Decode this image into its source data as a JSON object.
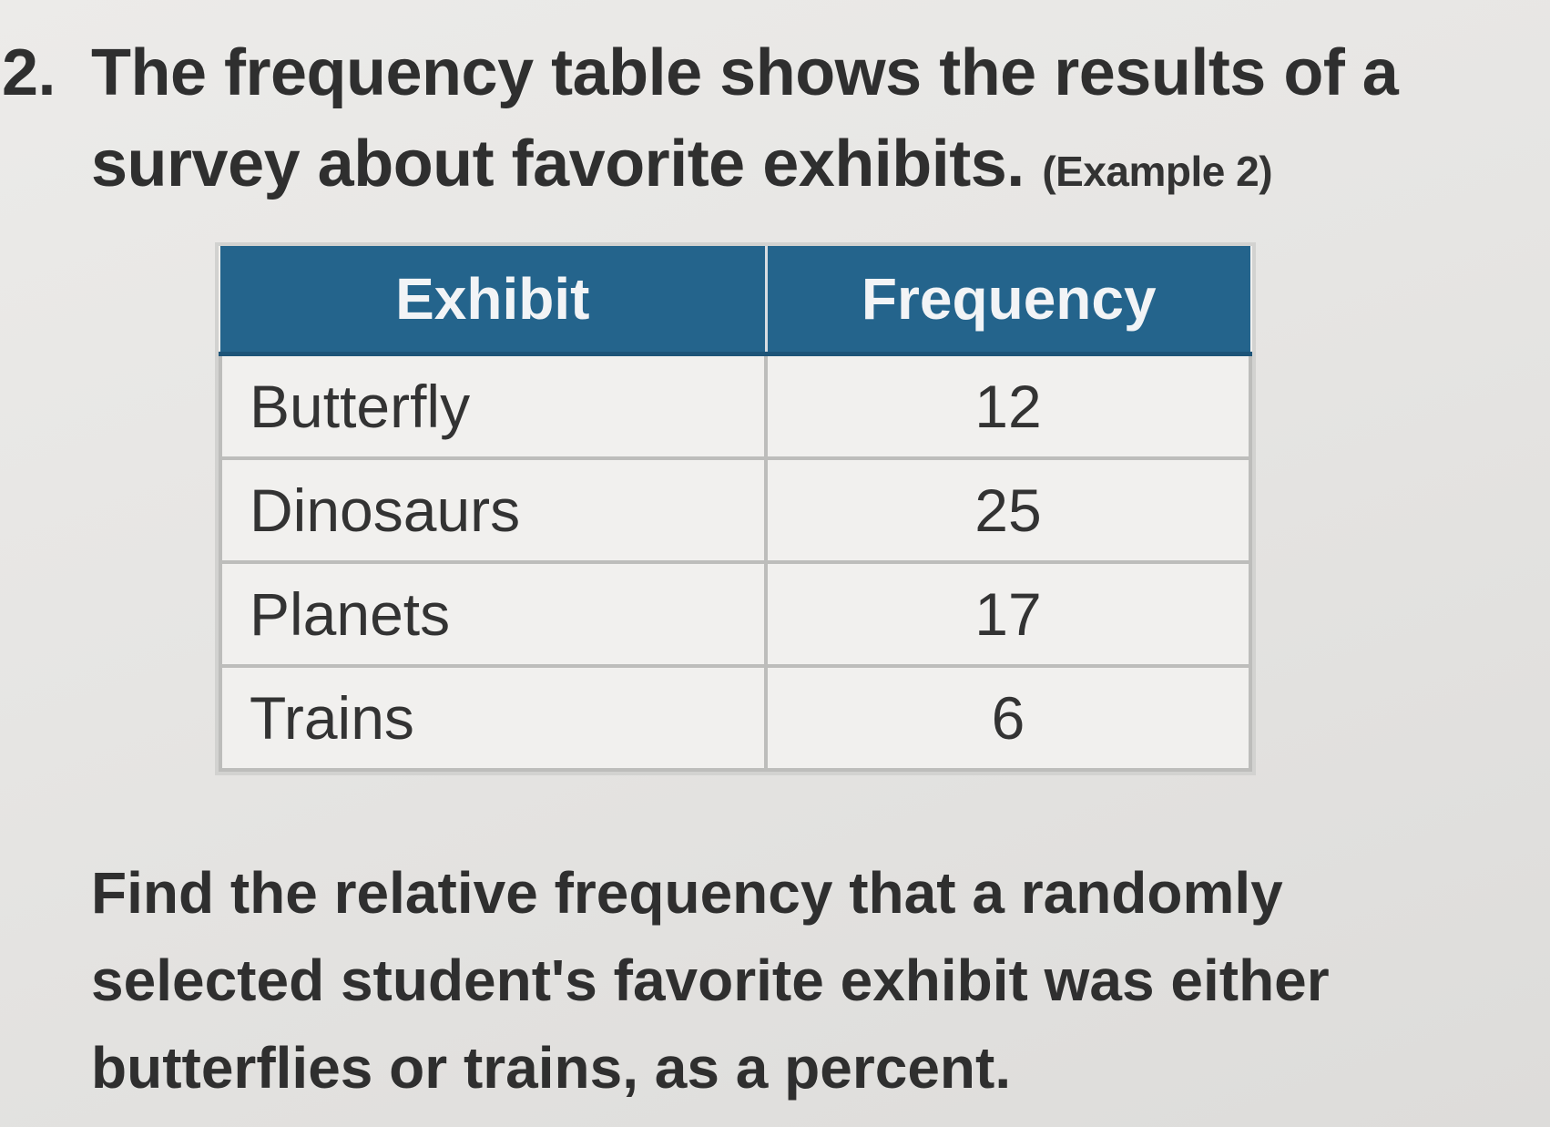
{
  "problem": {
    "number": "2.",
    "prompt": "The frequency table shows the results of a survey about favorite exhibits.",
    "example_ref": "(Example 2)"
  },
  "table": {
    "headers": [
      "Exhibit",
      "Frequency"
    ],
    "rows": [
      {
        "exhibit": "Butterfly",
        "frequency": "12"
      },
      {
        "exhibit": "Dinosaurs",
        "frequency": "25"
      },
      {
        "exhibit": "Planets",
        "frequency": "17"
      },
      {
        "exhibit": "Trains",
        "frequency": "6"
      }
    ]
  },
  "question": "Find the relative frequency that a randomly selected student's favorite exhibit was either butterflies or trains, as a percent.",
  "colors": {
    "header_bg": "#24648c",
    "header_text": "#f2f4f6",
    "body_text": "#2f2f2f",
    "page_bg": "#e8e7e5"
  }
}
